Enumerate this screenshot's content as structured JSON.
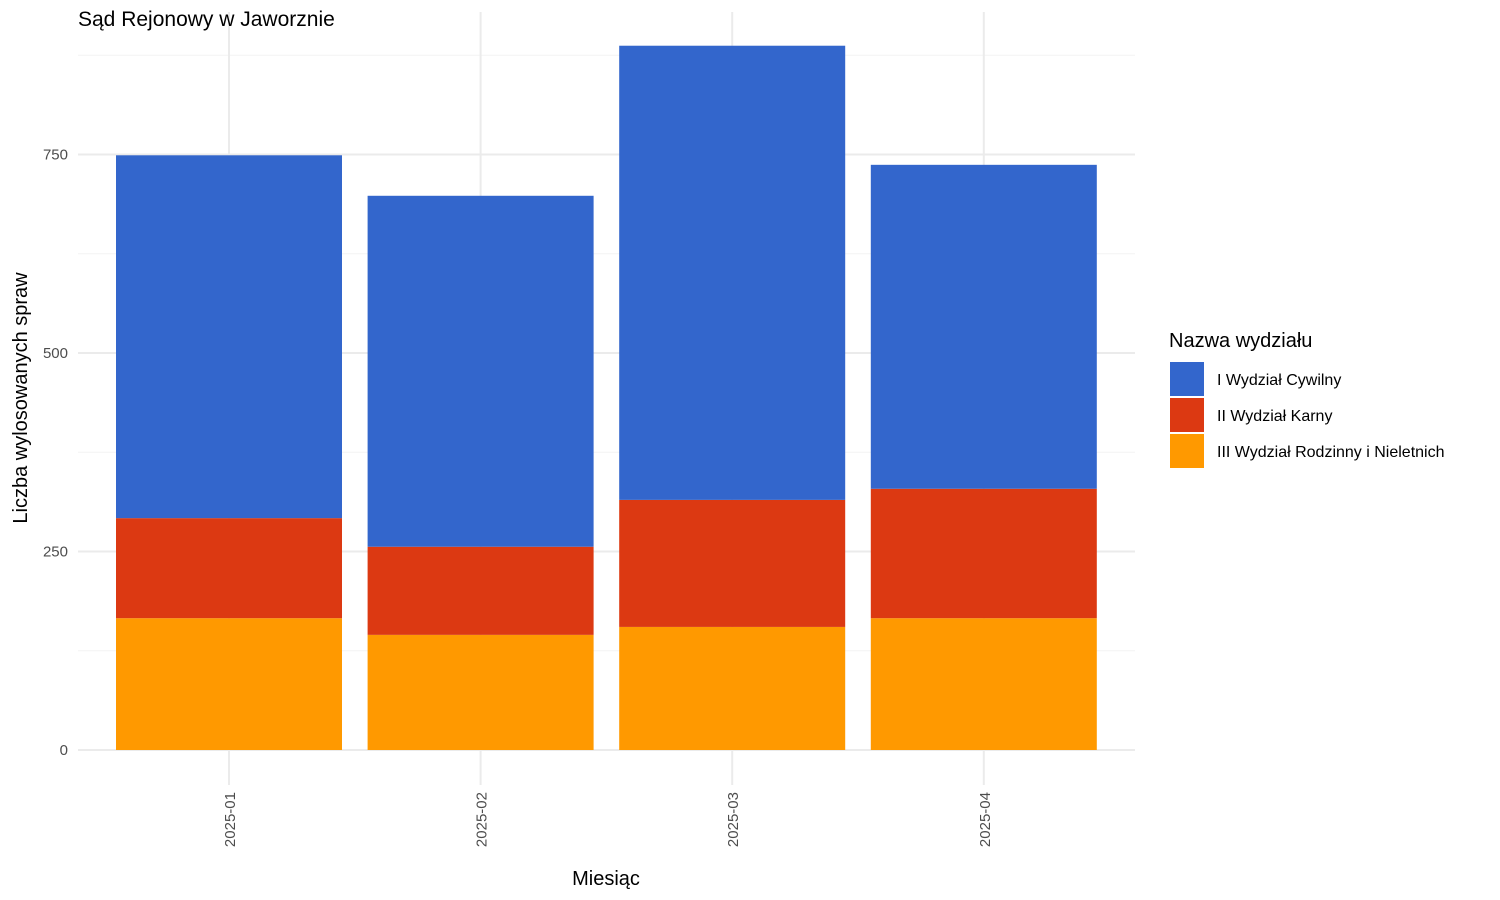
{
  "chart_data": {
    "type": "bar",
    "stacked": true,
    "title": "Sąd Rejonowy w Jaworznie",
    "xlabel": "Miesiąc",
    "ylabel": "Liczba wylosowanych spraw",
    "categories": [
      "2025-01",
      "2025-02",
      "2025-03",
      "2025-04"
    ],
    "ylim": [
      0,
      925
    ],
    "yticks": [
      0,
      250,
      500,
      750
    ],
    "grid": true,
    "legend": {
      "title": "Nazwa wydziału",
      "position": "right"
    },
    "series": [
      {
        "name": "III Wydział Rodzinny i Nieletnich",
        "color": "#FF9900",
        "values": [
          166,
          145,
          155,
          166
        ]
      },
      {
        "name": "II Wydział Karny",
        "color": "#DC3912",
        "values": [
          126,
          111,
          160,
          163
        ]
      },
      {
        "name": "I Wydział Cywilny",
        "color": "#3366CC",
        "values": [
          457,
          442,
          572,
          408
        ]
      }
    ],
    "legend_order": [
      "I Wydział Cywilny",
      "II Wydział Karny",
      "III Wydział Rodzinny i Nieletnich"
    ]
  }
}
